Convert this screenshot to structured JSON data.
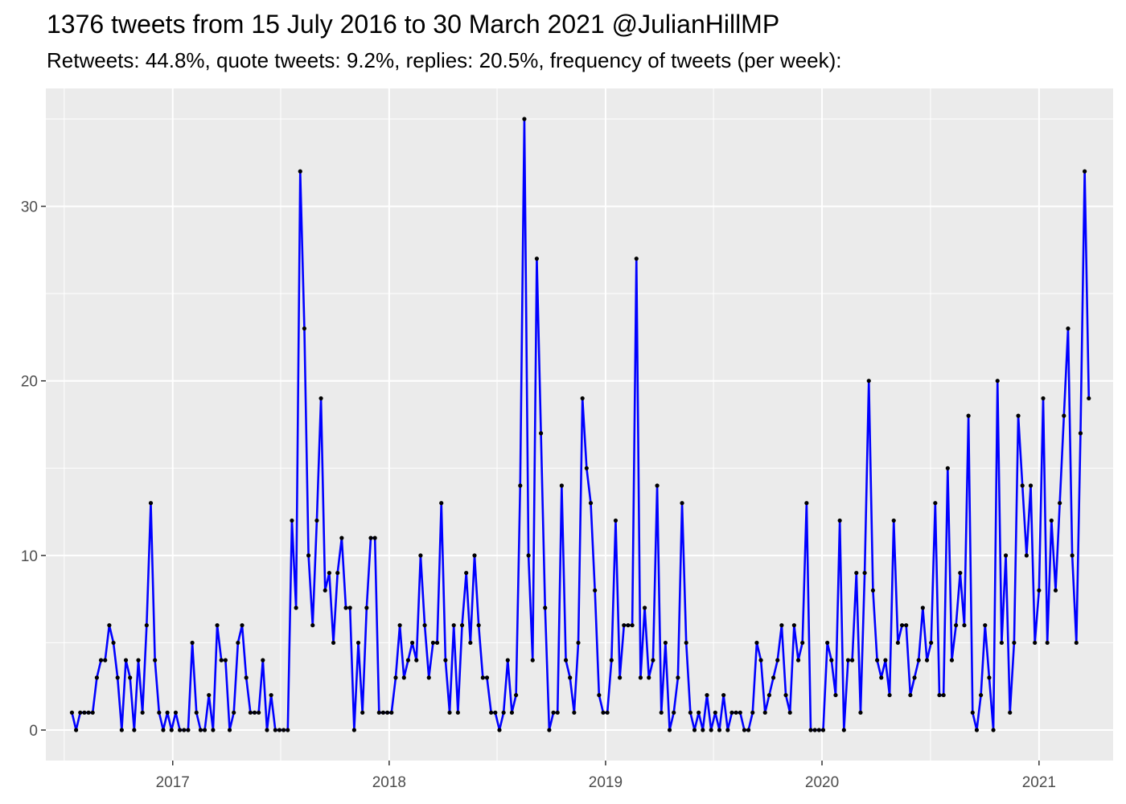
{
  "title": "1376 tweets from 15 July 2016 to 30 March 2021 @JulianHillMP",
  "subtitle": "Retweets: 44.8%, quote tweets: 9.2%, replies: 20.5%, frequency of tweets (per week):",
  "chart_data": {
    "type": "line",
    "title": "1376 tweets from 15 July 2016 to 30 March 2021 @JulianHillMP",
    "subtitle": "Retweets: 44.8%, quote tweets: 9.2%, replies: 20.5%, frequency of tweets (per week):",
    "xlabel": "",
    "ylabel": "",
    "x_start": "2016-07-15",
    "x_step_days": 7,
    "xlim": [
      "2016-06-01",
      "2021-05-06"
    ],
    "ylim": [
      -1.75,
      36.75
    ],
    "x_ticks": [
      {
        "date": "2017-01-01",
        "label": "2017"
      },
      {
        "date": "2018-01-01",
        "label": "2018"
      },
      {
        "date": "2019-01-01",
        "label": "2019"
      },
      {
        "date": "2020-01-01",
        "label": "2020"
      },
      {
        "date": "2021-01-01",
        "label": "2021"
      }
    ],
    "y_ticks": [
      0,
      10,
      20,
      30
    ],
    "grid": true,
    "line_color": "#0000ff",
    "point_color": "#000000",
    "panel_background": "#ebebeb",
    "series": [
      {
        "values": [
          1,
          0,
          1,
          1,
          1,
          1,
          3,
          4,
          4,
          6,
          5,
          3,
          0,
          4,
          3,
          0,
          4,
          1,
          6,
          13,
          4,
          1,
          0,
          1,
          0,
          1,
          0,
          0,
          0,
          5,
          1,
          0,
          0,
          2,
          0,
          6,
          4,
          4,
          0,
          1,
          5,
          6,
          3,
          1,
          1,
          1,
          4,
          0,
          2,
          0,
          0,
          0,
          0,
          12,
          7,
          32,
          23,
          10,
          6,
          12,
          19,
          8,
          9,
          5,
          9,
          11,
          7,
          7,
          0,
          5,
          1,
          7,
          11,
          11,
          1,
          1,
          1,
          1,
          3,
          6,
          3,
          4,
          5,
          4,
          10,
          6,
          3,
          5,
          5,
          13,
          4,
          1,
          6,
          1,
          6,
          9,
          5,
          10,
          6,
          3,
          3,
          1,
          1,
          0,
          1,
          4,
          1,
          2,
          14,
          35,
          10,
          4,
          27,
          17,
          7,
          0,
          1,
          1,
          14,
          4,
          3,
          1,
          5,
          19,
          15,
          13,
          8,
          2,
          1,
          1,
          4,
          12,
          3,
          6,
          6,
          6,
          27,
          3,
          7,
          3,
          4,
          14,
          1,
          5,
          0,
          1,
          3,
          13,
          5,
          1,
          0,
          1,
          0,
          2,
          0,
          1,
          0,
          2,
          0,
          1,
          1,
          1,
          0,
          0,
          1,
          5,
          4,
          1,
          2,
          3,
          4,
          6,
          2,
          1,
          6,
          4,
          5,
          13,
          0,
          0,
          0,
          0,
          5,
          4,
          2,
          12,
          0,
          4,
          4,
          9,
          1,
          9,
          20,
          8,
          4,
          3,
          4,
          2,
          12,
          5,
          6,
          6,
          2,
          3,
          4,
          7,
          4,
          5,
          13,
          2,
          2,
          15,
          4,
          6,
          9,
          6,
          18,
          1,
          0,
          2,
          6,
          3,
          0,
          20,
          5,
          10,
          1,
          5,
          18,
          14,
          10,
          14,
          5,
          8,
          19,
          5,
          12,
          8,
          13,
          18,
          23,
          10,
          5,
          17,
          32,
          19
        ]
      }
    ]
  }
}
